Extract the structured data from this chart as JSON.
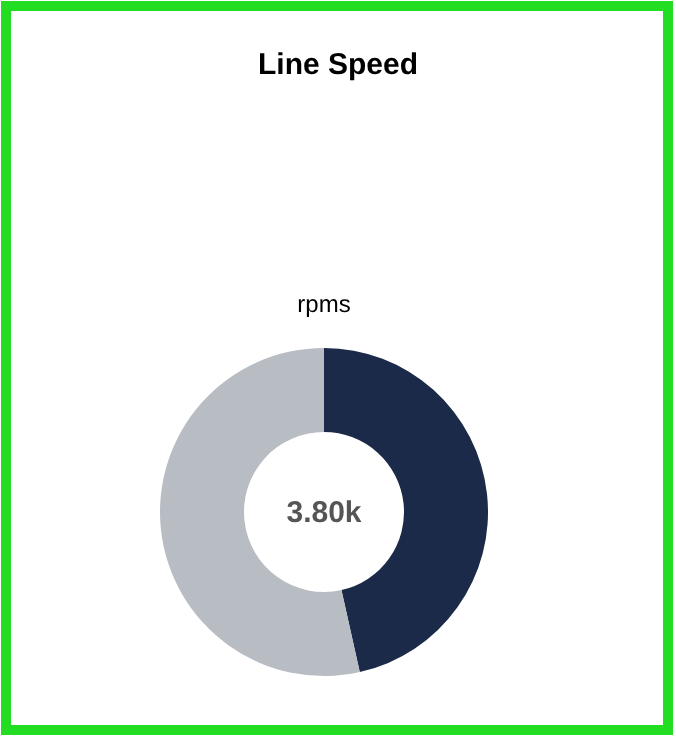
{
  "chart_data": {
    "type": "donut",
    "title": "Line Speed",
    "subtitle": "rpms",
    "categories": [
      null,
      null
    ],
    "values": [
      46.5,
      53.5
    ],
    "colors": [
      "#1b2a48",
      "#b8bcc3"
    ],
    "annotations": [
      "3.80k"
    ]
  }
}
